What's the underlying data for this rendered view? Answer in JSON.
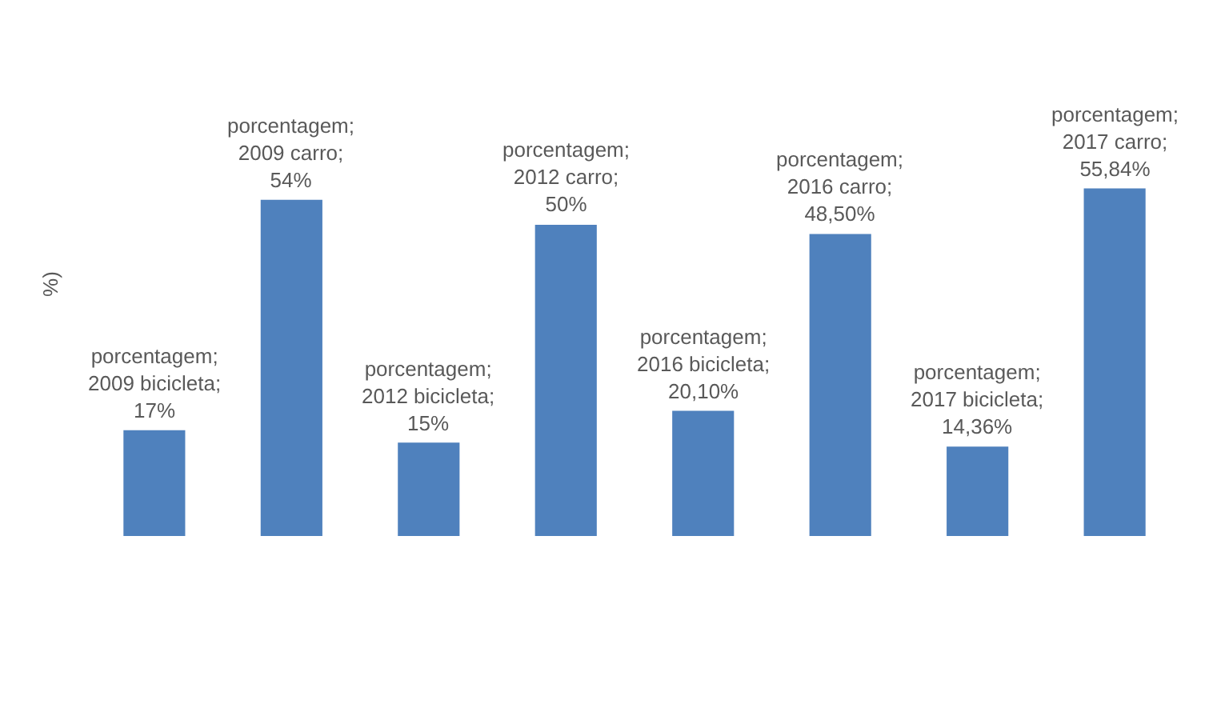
{
  "chart_data": {
    "type": "bar",
    "ylabel": "%)",
    "categories": [
      null,
      null,
      null,
      null,
      null,
      null,
      null,
      null
    ],
    "series": [
      {
        "color": "#4f81bd",
        "values": [
          17,
          54,
          15,
          50,
          20.1,
          48.5,
          14.36,
          55.84
        ],
        "value_labels": [
          "porcentagem; 2009 bicicleta; 17%",
          "porcentagem; 2009 carro; 54%",
          "porcentagem; 2012 bicicleta; 15%",
          "porcentagem; 2012 carro; 50%",
          "porcentagem; 2016 bicicleta; 20,10%",
          "porcentagem; 2016 carro; 48,50%",
          "porcentagem; 2017 bicicleta; 14,36%",
          "porcentagem; 2017 carro; 55,84%"
        ]
      }
    ],
    "grid": false
  }
}
